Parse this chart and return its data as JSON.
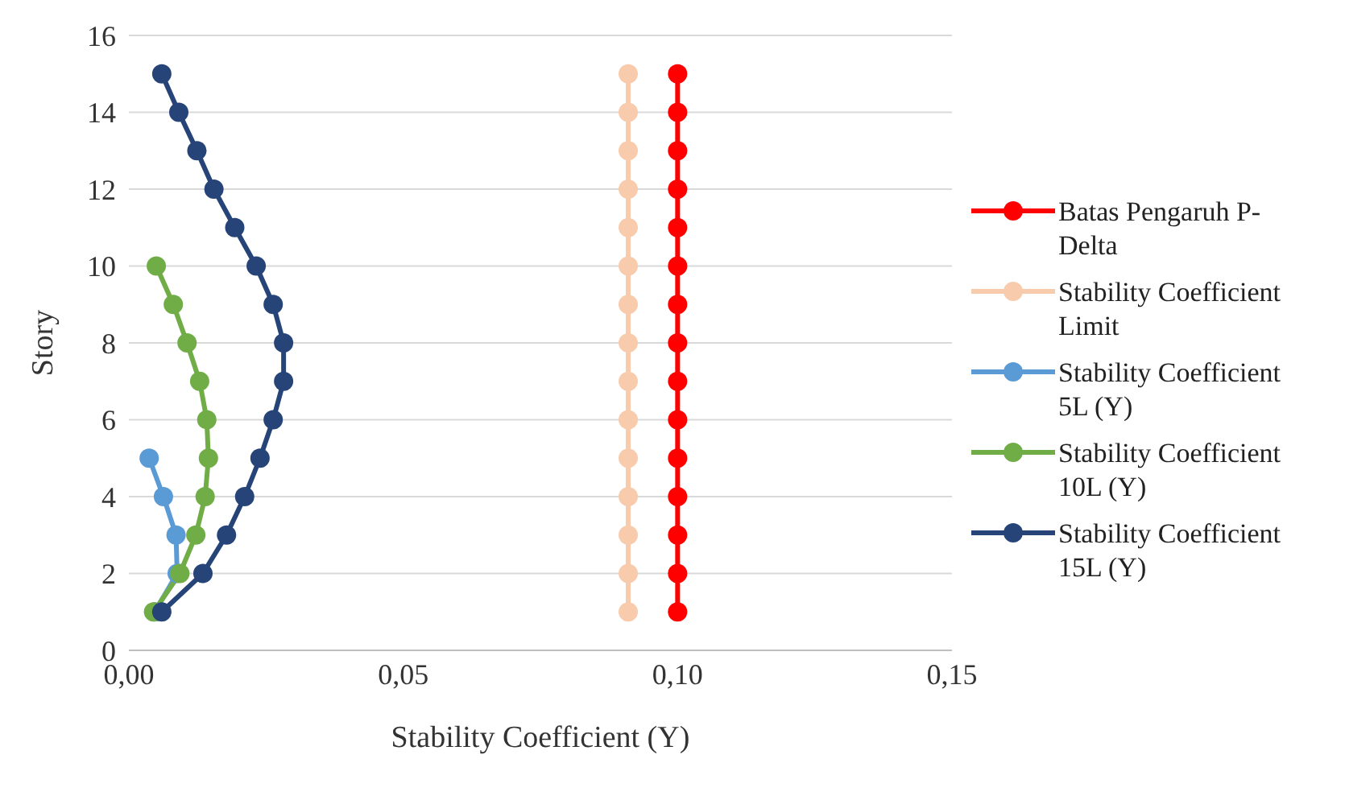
{
  "chart_data": {
    "type": "line",
    "xlabel": "Stability Coefficient (Y)",
    "ylabel": "Story",
    "xlim": [
      0,
      0.15
    ],
    "xticks": [
      {
        "value": 0,
        "label": "0,00"
      },
      {
        "value": 0.05,
        "label": "0,05"
      },
      {
        "value": 0.1,
        "label": "0,10"
      },
      {
        "value": 0.15,
        "label": "0,15"
      }
    ],
    "ylim": [
      0,
      16
    ],
    "yticks": [
      0,
      2,
      4,
      6,
      8,
      10,
      12,
      14,
      16
    ],
    "grid": "y",
    "legend": "right",
    "marker": "circle",
    "line_style": "solid",
    "series": [
      {
        "name": "Batas Pengaruh P-Delta",
        "color": "#ff0000",
        "x": [
          0.1,
          0.1,
          0.1,
          0.1,
          0.1,
          0.1,
          0.1,
          0.1,
          0.1,
          0.1,
          0.1,
          0.1,
          0.1,
          0.1,
          0.1
        ],
        "values": [
          1,
          2,
          3,
          4,
          5,
          6,
          7,
          8,
          9,
          10,
          11,
          12,
          13,
          14,
          15
        ]
      },
      {
        "name": "Stability Coefficient Limit",
        "color": "#f8cbad",
        "x": [
          0.091,
          0.091,
          0.091,
          0.091,
          0.091,
          0.091,
          0.091,
          0.091,
          0.091,
          0.091,
          0.091,
          0.091,
          0.091,
          0.091,
          0.091
        ],
        "values": [
          1,
          2,
          3,
          4,
          5,
          6,
          7,
          8,
          9,
          10,
          11,
          12,
          13,
          14,
          15
        ]
      },
      {
        "name": "Stability Coefficient 5L (Y)",
        "color": "#5b9bd5",
        "x": [
          0.0047,
          0.0088,
          0.0086,
          0.0063,
          0.0037
        ],
        "values": [
          1,
          2,
          3,
          4,
          5
        ]
      },
      {
        "name": "Stability Coefficient 10L (Y)",
        "color": "#70ad47",
        "x": [
          0.0045,
          0.0093,
          0.0122,
          0.0139,
          0.0145,
          0.0142,
          0.0129,
          0.0106,
          0.0081,
          0.005
        ],
        "values": [
          1,
          2,
          3,
          4,
          5,
          6,
          7,
          8,
          9,
          10
        ]
      },
      {
        "name": "Stability Coefficient 15L (Y)",
        "color": "#264478",
        "x": [
          0.006,
          0.0135,
          0.0178,
          0.0211,
          0.0239,
          0.0263,
          0.0282,
          0.0282,
          0.0263,
          0.0232,
          0.0193,
          0.0155,
          0.0124,
          0.0091,
          0.006
        ],
        "values": [
          1,
          2,
          3,
          4,
          5,
          6,
          7,
          8,
          9,
          10,
          11,
          12,
          13,
          14,
          15
        ]
      }
    ]
  }
}
